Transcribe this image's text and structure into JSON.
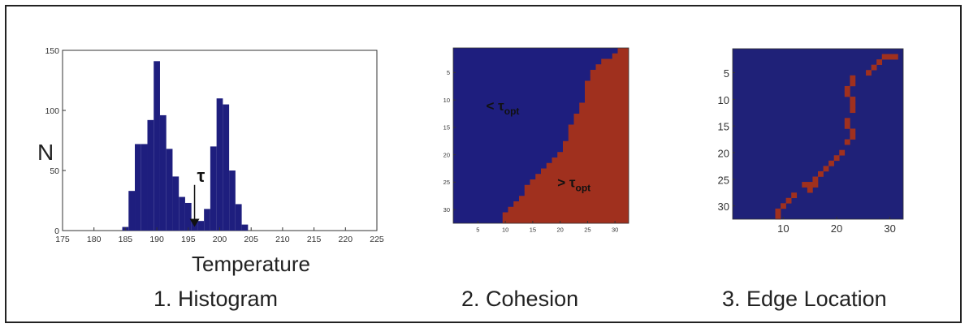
{
  "captions": {
    "histogram": "1. Histogram",
    "cohesion": "2. Cohesion",
    "edge": "3. Edge Location"
  },
  "colors": {
    "navy": "#1e1e7e",
    "red": "#a0301e",
    "edge_bg": "#1f2178"
  },
  "chart_data": [
    {
      "type": "bar",
      "title": "",
      "xlabel": "Temperature",
      "ylabel": "N",
      "xlim": [
        175,
        225
      ],
      "ylim": [
        0,
        150
      ],
      "xticks": [
        175,
        180,
        185,
        190,
        195,
        200,
        205,
        210,
        215,
        220,
        225
      ],
      "yticks": [
        0,
        50,
        100,
        150
      ],
      "bin_width": 1,
      "bins": [
        {
          "x": 185,
          "y": 3
        },
        {
          "x": 186,
          "y": 33
        },
        {
          "x": 187,
          "y": 72
        },
        {
          "x": 188,
          "y": 72
        },
        {
          "x": 189,
          "y": 92
        },
        {
          "x": 190,
          "y": 141
        },
        {
          "x": 191,
          "y": 96
        },
        {
          "x": 192,
          "y": 68
        },
        {
          "x": 193,
          "y": 45
        },
        {
          "x": 194,
          "y": 28
        },
        {
          "x": 195,
          "y": 23
        },
        {
          "x": 196,
          "y": 9
        },
        {
          "x": 197,
          "y": 8
        },
        {
          "x": 198,
          "y": 18
        },
        {
          "x": 199,
          "y": 70
        },
        {
          "x": 200,
          "y": 110
        },
        {
          "x": 201,
          "y": 105
        },
        {
          "x": 202,
          "y": 50
        },
        {
          "x": 203,
          "y": 22
        },
        {
          "x": 204,
          "y": 5
        }
      ],
      "annotation": {
        "text": "τ",
        "x": 196,
        "from_y": 38,
        "to_y": 3
      }
    },
    {
      "type": "heatmap",
      "title": "",
      "size": 32,
      "xticks": [
        5,
        10,
        15,
        20,
        25,
        30
      ],
      "yticks": [
        5,
        10,
        15,
        20,
        25,
        30
      ],
      "boundary": [
        {
          "row": 1,
          "col": 31
        },
        {
          "row": 2,
          "col": 30
        },
        {
          "row": 3,
          "col": 28
        },
        {
          "row": 4,
          "col": 27
        },
        {
          "row": 5,
          "col": 26
        },
        {
          "row": 6,
          "col": 26
        },
        {
          "row": 7,
          "col": 25
        },
        {
          "row": 8,
          "col": 25
        },
        {
          "row": 9,
          "col": 25
        },
        {
          "row": 10,
          "col": 25
        },
        {
          "row": 11,
          "col": 24
        },
        {
          "row": 12,
          "col": 24
        },
        {
          "row": 13,
          "col": 23
        },
        {
          "row": 14,
          "col": 23
        },
        {
          "row": 15,
          "col": 22
        },
        {
          "row": 16,
          "col": 22
        },
        {
          "row": 17,
          "col": 22
        },
        {
          "row": 18,
          "col": 21
        },
        {
          "row": 19,
          "col": 21
        },
        {
          "row": 20,
          "col": 20
        },
        {
          "row": 21,
          "col": 19
        },
        {
          "row": 22,
          "col": 18
        },
        {
          "row": 23,
          "col": 17
        },
        {
          "row": 24,
          "col": 16
        },
        {
          "row": 25,
          "col": 15
        },
        {
          "row": 26,
          "col": 14
        },
        {
          "row": 27,
          "col": 14
        },
        {
          "row": 28,
          "col": 13
        },
        {
          "row": 29,
          "col": 12
        },
        {
          "row": 30,
          "col": 11
        },
        {
          "row": 31,
          "col": 10
        },
        {
          "row": 32,
          "col": 10
        }
      ],
      "labels": [
        {
          "text": "< τ",
          "sub": "opt",
          "row": 11,
          "col": 7
        },
        {
          "text": "> τ",
          "sub": "opt",
          "row": 25,
          "col": 20
        }
      ]
    },
    {
      "type": "heatmap",
      "title": "",
      "size": 32,
      "xticks": [
        10,
        20,
        30
      ],
      "yticks": [
        5,
        10,
        15,
        20,
        25,
        30
      ],
      "edge_cells": [
        {
          "row": 2,
          "col": 29
        },
        {
          "row": 2,
          "col": 30
        },
        {
          "row": 2,
          "col": 31
        },
        {
          "row": 3,
          "col": 28
        },
        {
          "row": 4,
          "col": 27
        },
        {
          "row": 5,
          "col": 26
        },
        {
          "row": 6,
          "col": 23
        },
        {
          "row": 7,
          "col": 23
        },
        {
          "row": 8,
          "col": 22
        },
        {
          "row": 9,
          "col": 22
        },
        {
          "row": 10,
          "col": 23
        },
        {
          "row": 11,
          "col": 23
        },
        {
          "row": 12,
          "col": 23
        },
        {
          "row": 14,
          "col": 22
        },
        {
          "row": 15,
          "col": 22
        },
        {
          "row": 16,
          "col": 23
        },
        {
          "row": 17,
          "col": 23
        },
        {
          "row": 18,
          "col": 22
        },
        {
          "row": 20,
          "col": 21
        },
        {
          "row": 21,
          "col": 20
        },
        {
          "row": 22,
          "col": 19
        },
        {
          "row": 23,
          "col": 18
        },
        {
          "row": 24,
          "col": 17
        },
        {
          "row": 25,
          "col": 16
        },
        {
          "row": 26,
          "col": 14
        },
        {
          "row": 26,
          "col": 15
        },
        {
          "row": 26,
          "col": 16
        },
        {
          "row": 27,
          "col": 15
        },
        {
          "row": 28,
          "col": 12
        },
        {
          "row": 29,
          "col": 11
        },
        {
          "row": 30,
          "col": 10
        },
        {
          "row": 31,
          "col": 9
        },
        {
          "row": 32,
          "col": 9
        }
      ]
    }
  ]
}
